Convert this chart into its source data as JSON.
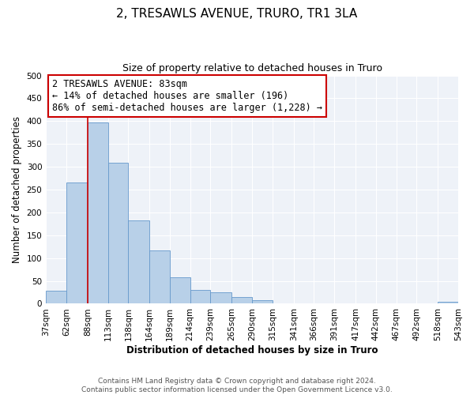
{
  "title": "2, TRESAWLS AVENUE, TRURO, TR1 3LA",
  "subtitle": "Size of property relative to detached houses in Truro",
  "xlabel": "Distribution of detached houses by size in Truro",
  "ylabel": "Number of detached properties",
  "bar_color": "#b8d0e8",
  "bar_edge_color": "#6699cc",
  "background_color": "#ffffff",
  "plot_bg_color": "#eef2f8",
  "grid_color": "#ffffff",
  "annotation_box_color": "#cc0000",
  "vline_color": "#cc0000",
  "vline_x": 88,
  "bin_edges": [
    37,
    62,
    88,
    113,
    138,
    164,
    189,
    214,
    239,
    265,
    290,
    315,
    341,
    366,
    391,
    417,
    442,
    467,
    492,
    518,
    543
  ],
  "bar_heights": [
    28,
    265,
    397,
    309,
    182,
    116,
    58,
    31,
    25,
    15,
    7,
    1,
    0,
    0,
    0,
    0,
    0,
    0,
    0,
    5
  ],
  "ylim": [
    0,
    500
  ],
  "yticks": [
    0,
    50,
    100,
    150,
    200,
    250,
    300,
    350,
    400,
    450,
    500
  ],
  "annotation_title": "2 TRESAWLS AVENUE: 83sqm",
  "annotation_line2": "← 14% of detached houses are smaller (196)",
  "annotation_line3": "86% of semi-detached houses are larger (1,228) →",
  "footer_line1": "Contains HM Land Registry data © Crown copyright and database right 2024.",
  "footer_line2": "Contains public sector information licensed under the Open Government Licence v3.0.",
  "title_fontsize": 11,
  "subtitle_fontsize": 9,
  "axis_label_fontsize": 8.5,
  "tick_fontsize": 7.5,
  "annotation_fontsize": 8.5,
  "footer_fontsize": 6.5
}
